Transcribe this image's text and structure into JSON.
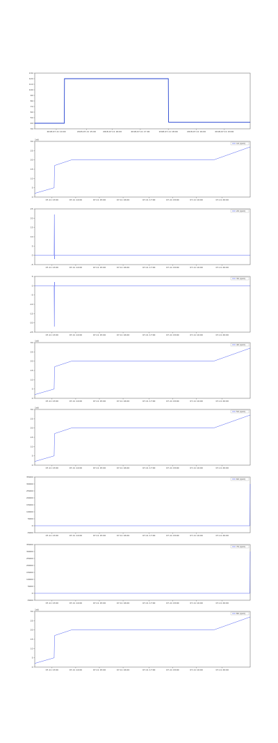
{
  "chart_data": [
    {
      "type": "line",
      "color": "#1f3fcf",
      "x": [
        0,
        13.7,
        13.8,
        62,
        62.1,
        100
      ],
      "values": [
        40,
        40,
        120,
        120,
        42,
        42
      ],
      "xlim": [
        0,
        100
      ],
      "ylim": [
        30,
        130
      ],
      "yticks": [
        30,
        40,
        50,
        60,
        70,
        80,
        90,
        100,
        110,
        120,
        130
      ],
      "xticks": [
        {
          "value": 10,
          "label": "2018-07-11 14:00"
        },
        {
          "value": 24,
          "label": "2018-07-11 15:00"
        },
        {
          "value": 36,
          "label": "2018-07-11 16:00"
        },
        {
          "value": 49,
          "label": "2018-07-11 17:00"
        },
        {
          "value": 62,
          "label": "2018-07-11 18:00"
        },
        {
          "value": 75,
          "label": "2018-07-11 19:00"
        },
        {
          "value": 88,
          "label": "2018-07-11 20:00"
        }
      ]
    },
    {
      "type": "line",
      "offset_label": "1e6",
      "series": [
        {
          "name": "1X (rpm)",
          "color": "#4a5cf0",
          "values": [
            2,
            5,
            17,
            20,
            20,
            27
          ]
        }
      ],
      "x": [
        0,
        9,
        9.2,
        17,
        83,
        100
      ],
      "xlim": [
        0,
        100
      ],
      "ylim": [
        0,
        30
      ],
      "yticks": [
        0,
        5,
        10,
        15,
        20,
        25,
        30
      ],
      "xticks": [
        {
          "value": 8,
          "label": "07-11 13:00"
        },
        {
          "value": 19,
          "label": "07-11 14:00"
        },
        {
          "value": 30,
          "label": "07-11 15:00"
        },
        {
          "value": 41,
          "label": "07-11 16:00"
        },
        {
          "value": 53,
          "label": "07-11 17:00"
        },
        {
          "value": 64,
          "label": "07-11 18:00"
        },
        {
          "value": 75,
          "label": "07-11 19:00"
        },
        {
          "value": 87,
          "label": "07-11 20:00"
        }
      ]
    },
    {
      "type": "line",
      "series": [
        {
          "name": "2X (rpm)",
          "color": "#4a5cf0",
          "values": [
            0,
            0,
            22,
            -2,
            0,
            0
          ]
        }
      ],
      "x": [
        0,
        9,
        9.1,
        9.2,
        9.3,
        100
      ],
      "xlim": [
        0,
        100
      ],
      "ylim": [
        -5,
        25
      ],
      "yticks": [
        -5,
        0,
        5,
        10,
        15,
        20,
        25
      ],
      "xticks": [
        {
          "value": 8,
          "label": "07-11 13:00"
        },
        {
          "value": 19,
          "label": "07-11 14:00"
        },
        {
          "value": 30,
          "label": "07-11 15:00"
        },
        {
          "value": 41,
          "label": "07-11 16:00"
        },
        {
          "value": 53,
          "label": "07-11 17:00"
        },
        {
          "value": 64,
          "label": "07-11 18:00"
        },
        {
          "value": 75,
          "label": "07-11 19:00"
        },
        {
          "value": 87,
          "label": "07-11 20:00"
        }
      ]
    },
    {
      "type": "line",
      "series": [
        {
          "name": "3X (rpm)",
          "color": "#4a5cf0",
          "values": [
            0,
            0,
            -22,
            2,
            0,
            0
          ]
        }
      ],
      "x": [
        0,
        9,
        9.1,
        9.2,
        9.3,
        100
      ],
      "xlim": [
        0,
        100
      ],
      "ylim": [
        -25,
        5
      ],
      "yticks": [
        -25,
        -20,
        -15,
        -10,
        -5,
        0,
        5
      ],
      "xticks": [
        {
          "value": 8,
          "label": "07-11 13:00"
        },
        {
          "value": 19,
          "label": "07-11 14:00"
        },
        {
          "value": 30,
          "label": "07-11 15:00"
        },
        {
          "value": 41,
          "label": "07-11 16:00"
        },
        {
          "value": 53,
          "label": "07-11 17:00"
        },
        {
          "value": 64,
          "label": "07-11 18:00"
        },
        {
          "value": 75,
          "label": "07-11 19:00"
        },
        {
          "value": 87,
          "label": "07-11 20:00"
        }
      ]
    },
    {
      "type": "line",
      "offset_label": "1e6",
      "series": [
        {
          "name": "4X (rpm)",
          "color": "#4a5cf0",
          "values": [
            2,
            5,
            17,
            20,
            20,
            27
          ]
        }
      ],
      "x": [
        0,
        9,
        9.2,
        17,
        83,
        100
      ],
      "xlim": [
        0,
        100
      ],
      "ylim": [
        0,
        30
      ],
      "yticks": [
        0,
        5,
        10,
        15,
        20,
        25,
        30
      ],
      "xticks": [
        {
          "value": 8,
          "label": "07-11 13:00"
        },
        {
          "value": 19,
          "label": "07-11 14:00"
        },
        {
          "value": 30,
          "label": "07-11 15:00"
        },
        {
          "value": 41,
          "label": "07-11 16:00"
        },
        {
          "value": 53,
          "label": "07-11 17:00"
        },
        {
          "value": 64,
          "label": "07-11 18:00"
        },
        {
          "value": 75,
          "label": "07-11 19:00"
        },
        {
          "value": 87,
          "label": "07-11 20:00"
        }
      ]
    },
    {
      "type": "line",
      "offset_label": "1e6",
      "series": [
        {
          "name": "5X (rpm)",
          "color": "#4a5cf0",
          "values": [
            2,
            5,
            17,
            20,
            20,
            27
          ]
        }
      ],
      "x": [
        0,
        9,
        9.2,
        17,
        83,
        100
      ],
      "xlim": [
        0,
        100
      ],
      "ylim": [
        0,
        30
      ],
      "yticks": [
        0,
        5,
        10,
        15,
        20,
        25,
        30
      ],
      "xticks": [
        {
          "value": 8,
          "label": "07-11 13:00"
        },
        {
          "value": 19,
          "label": "07-11 14:00"
        },
        {
          "value": 30,
          "label": "07-11 15:00"
        },
        {
          "value": 41,
          "label": "07-11 16:00"
        },
        {
          "value": 53,
          "label": "07-11 17:00"
        },
        {
          "value": 64,
          "label": "07-11 18:00"
        },
        {
          "value": 75,
          "label": "07-11 19:00"
        },
        {
          "value": 87,
          "label": "07-11 20:00"
        }
      ]
    },
    {
      "type": "line",
      "series": [
        {
          "name": "6X (rpm)",
          "color": "#4a5cf0",
          "values": [
            0,
            0,
            30000
          ]
        }
      ],
      "x": [
        0,
        99.8,
        100
      ],
      "xlim": [
        0,
        100
      ],
      "ylim": [
        -5000,
        35000
      ],
      "yticks": [
        -5000,
        0,
        5000,
        10000,
        15000,
        20000,
        25000,
        30000,
        35000
      ],
      "xticks": [
        {
          "value": 8,
          "label": "07-11 13:00"
        },
        {
          "value": 19,
          "label": "07-11 14:00"
        },
        {
          "value": 30,
          "label": "07-11 15:00"
        },
        {
          "value": 41,
          "label": "07-11 16:00"
        },
        {
          "value": 53,
          "label": "07-11 17:00"
        },
        {
          "value": 64,
          "label": "07-11 18:00"
        },
        {
          "value": 75,
          "label": "07-11 19:00"
        },
        {
          "value": 87,
          "label": "07-11 20:00"
        }
      ]
    },
    {
      "type": "line",
      "series": [
        {
          "name": "7X (rpm)",
          "color": "#4a5cf0",
          "values": [
            0,
            0,
            30000
          ]
        }
      ],
      "x": [
        0,
        99.8,
        100
      ],
      "xlim": [
        0,
        100
      ],
      "ylim": [
        -5000,
        35000
      ],
      "yticks": [
        -5000,
        0,
        5000,
        10000,
        15000,
        20000,
        25000,
        30000,
        35000
      ],
      "xticks": [
        {
          "value": 8,
          "label": "07-11 13:00"
        },
        {
          "value": 19,
          "label": "07-11 14:00"
        },
        {
          "value": 30,
          "label": "07-11 15:00"
        },
        {
          "value": 41,
          "label": "07-11 16:00"
        },
        {
          "value": 53,
          "label": "07-11 17:00"
        },
        {
          "value": 64,
          "label": "07-11 18:00"
        },
        {
          "value": 75,
          "label": "07-11 19:00"
        },
        {
          "value": 87,
          "label": "07-11 20:00"
        }
      ]
    },
    {
      "type": "line",
      "offset_label": "1e6",
      "series": [
        {
          "name": "8X (rpm)",
          "color": "#4a5cf0",
          "values": [
            2,
            5,
            17,
            20,
            20,
            27
          ]
        }
      ],
      "x": [
        0,
        9,
        9.2,
        17,
        83,
        100
      ],
      "xlim": [
        0,
        100
      ],
      "ylim": [
        0,
        30
      ],
      "yticks": [
        0,
        5,
        10,
        15,
        20,
        25,
        30
      ],
      "xticks": [
        {
          "value": 8,
          "label": "07-11 13:00"
        },
        {
          "value": 19,
          "label": "07-11 14:00"
        },
        {
          "value": 30,
          "label": "07-11 15:00"
        },
        {
          "value": 41,
          "label": "07-11 16:00"
        },
        {
          "value": 53,
          "label": "07-11 17:00"
        },
        {
          "value": 64,
          "label": "07-11 18:00"
        },
        {
          "value": 75,
          "label": "07-11 19:00"
        },
        {
          "value": 87,
          "label": "07-11 20:00"
        }
      ]
    }
  ]
}
